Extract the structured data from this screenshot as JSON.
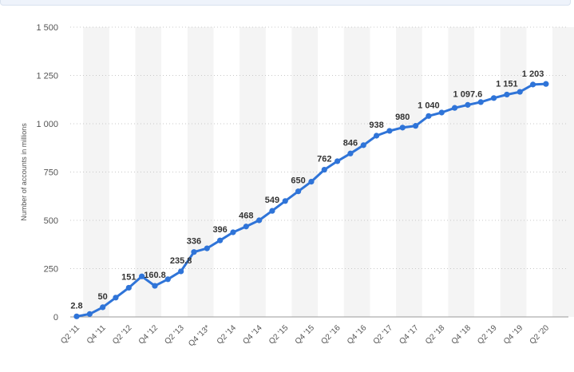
{
  "chart_data": {
    "type": "line",
    "title": "",
    "xlabel": "",
    "ylabel": "Number of accounts in millions",
    "ylim": [
      0,
      1500
    ],
    "yticks": [
      0,
      250,
      500,
      750,
      1000,
      1250,
      1500
    ],
    "ytick_labels": [
      "0",
      "250",
      "500",
      "750",
      "1 000",
      "1 250",
      "1 500"
    ],
    "grid": "horizontal dashed",
    "line_color": "#2f74d8",
    "categories": [
      "Q2 '11",
      "Q3 '11",
      "Q4 '11",
      "Q1 '12",
      "Q2 '12",
      "Q3 '12",
      "Q4 '12",
      "Q1 '13",
      "Q2 '13",
      "Q3 '13",
      "Q4 '13*",
      "Q1 '14",
      "Q2 '14",
      "Q3 '14",
      "Q4 '14",
      "Q1 '15",
      "Q2 '15",
      "Q3 '15",
      "Q4 '15",
      "Q1 '16",
      "Q2 '16",
      "Q3 '16",
      "Q4 '16",
      "Q1 '17",
      "Q2 '17",
      "Q3 '17",
      "Q4 '17",
      "Q1 '18",
      "Q2 '18",
      "Q3 '18",
      "Q4 '18",
      "Q1 '19",
      "Q2 '19",
      "Q3 '19",
      "Q4 '19",
      "Q1 '20",
      "Q2 '20"
    ],
    "x_tick_labels": [
      "Q2 '11",
      "",
      "Q4 '11",
      "",
      "Q2 '12",
      "",
      "Q4 '12",
      "",
      "Q2 '13",
      "",
      "Q4 '13*",
      "",
      "Q2 '14",
      "",
      "Q4 '14",
      "",
      "Q2 '15",
      "",
      "Q4 '15",
      "",
      "Q2 '16",
      "",
      "Q4 '16",
      "",
      "Q2 '17",
      "",
      "Q4 '17",
      "",
      "Q2 '18",
      "",
      "Q4 '18",
      "",
      "Q2 '19",
      "",
      "Q4 '19",
      "",
      "Q2 '20"
    ],
    "values": [
      2.8,
      15,
      50,
      100,
      151,
      210,
      160.8,
      195,
      235.8,
      336,
      355,
      396,
      438,
      468,
      500,
      549,
      600,
      650,
      700,
      762,
      806,
      846,
      889,
      938,
      963,
      980,
      989,
      1040,
      1058,
      1082,
      1097.6,
      1112,
      1133,
      1151,
      1165,
      1203,
      1206
    ],
    "data_labels": [
      "2.8",
      "",
      "50",
      "",
      "151",
      "",
      "160.8",
      "",
      "235.8",
      "336",
      "",
      "396",
      "",
      "468",
      "",
      "549",
      "",
      "650",
      "",
      "762",
      "",
      "846",
      "",
      "938",
      "",
      "980",
      "",
      "1 040",
      "",
      "",
      "1 097.6",
      "",
      "",
      "1 151",
      "",
      "1 203",
      ""
    ]
  }
}
